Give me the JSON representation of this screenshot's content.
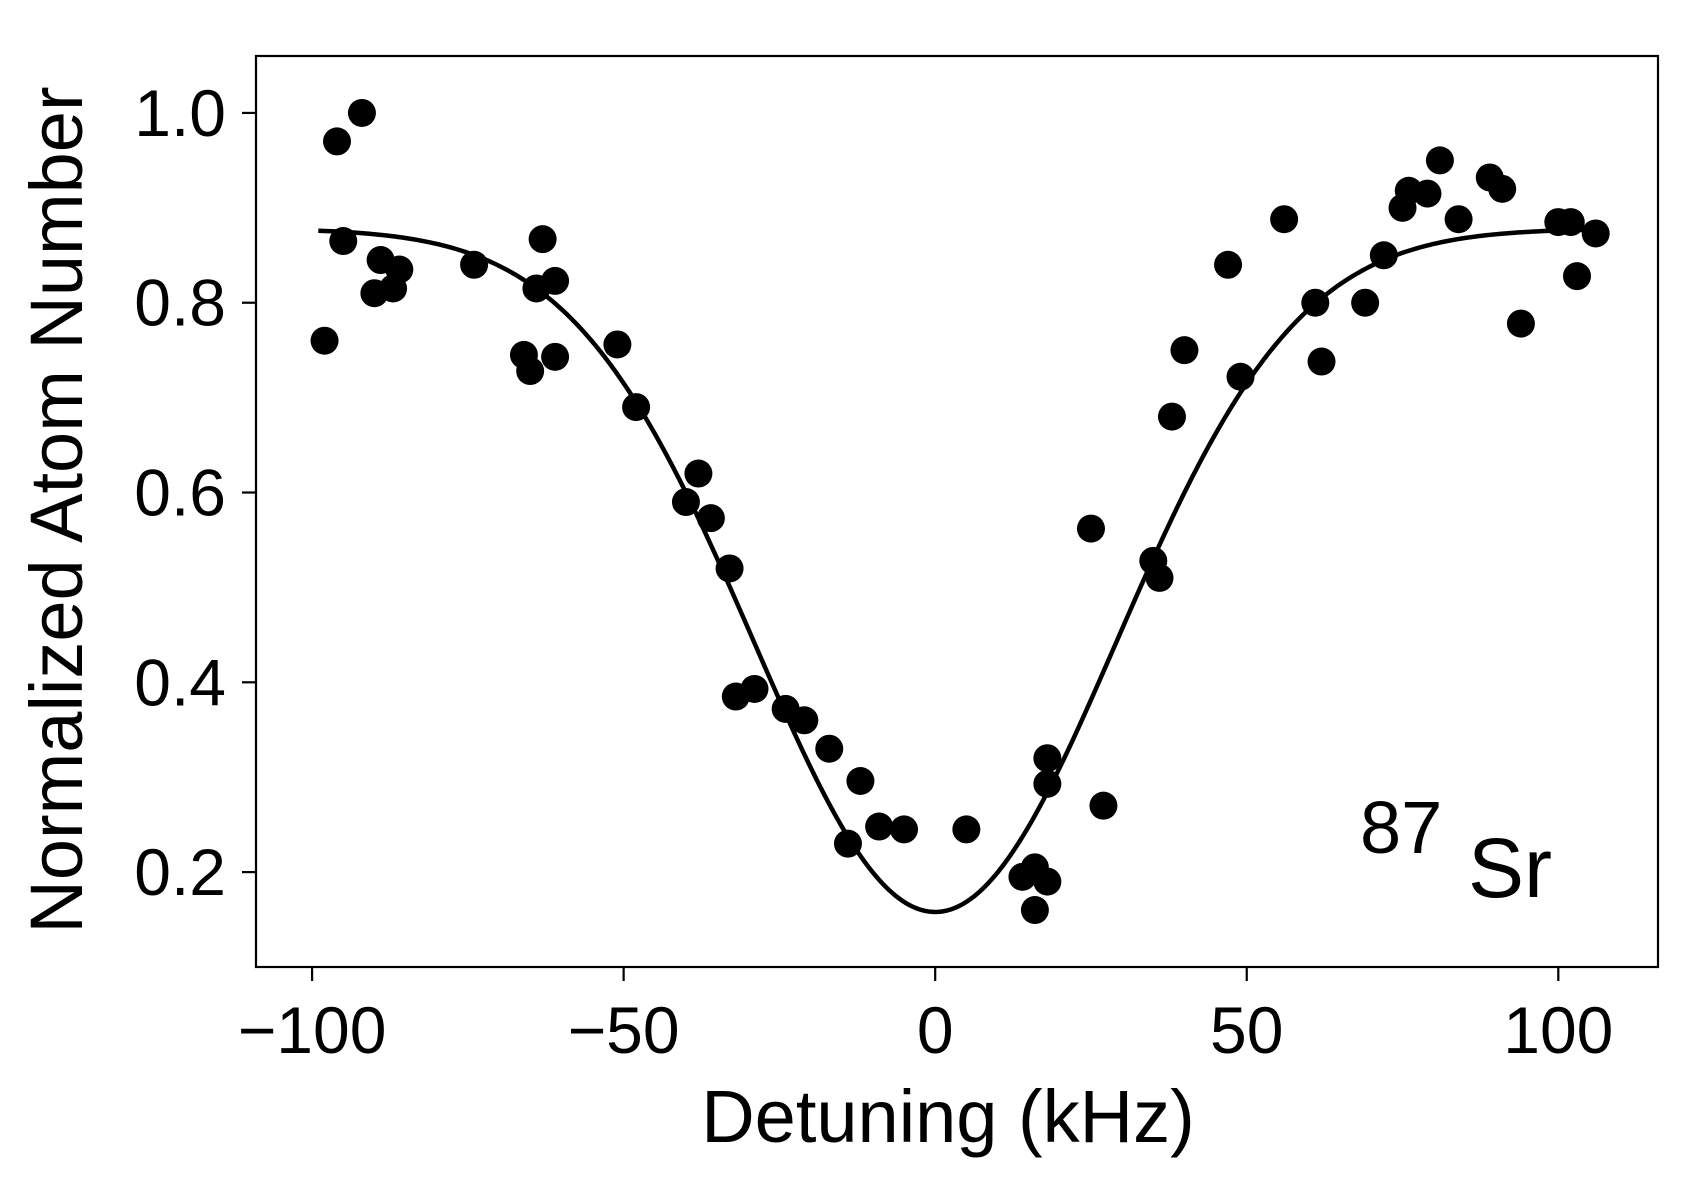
{
  "chart_data": {
    "type": "scatter",
    "title": "",
    "xlabel": "Detuning (kHz)",
    "ylabel": "Normalized Atom Number",
    "xlim": [
      -109,
      116
    ],
    "ylim": [
      0.1,
      1.06
    ],
    "xticks": [
      -100,
      -50,
      0,
      50,
      100
    ],
    "xtick_labels": [
      "−100",
      "−50",
      "0",
      "50",
      "100"
    ],
    "yticks": [
      0.2,
      0.4,
      0.6,
      0.8,
      1.0
    ],
    "ytick_labels": [
      "0.2",
      "0.4",
      "0.6",
      "0.8",
      "1.0"
    ],
    "grid": false,
    "annotation": {
      "superscript": "87",
      "text": "Sr",
      "position": "bottom-right"
    },
    "series": [
      {
        "name": "data",
        "style": "markers",
        "color": "#000000",
        "points": [
          [
            -98,
            0.76
          ],
          [
            -96,
            0.97
          ],
          [
            -95,
            0.865
          ],
          [
            -92,
            1.0
          ],
          [
            -90,
            0.81
          ],
          [
            -89,
            0.845
          ],
          [
            -87,
            0.815
          ],
          [
            -86,
            0.835
          ],
          [
            -74,
            0.84
          ],
          [
            -66,
            0.745
          ],
          [
            -65,
            0.728
          ],
          [
            -64,
            0.815
          ],
          [
            -63,
            0.867
          ],
          [
            -61,
            0.823
          ],
          [
            -61,
            0.743
          ],
          [
            -51,
            0.756
          ],
          [
            -48,
            0.69
          ],
          [
            -40,
            0.59
          ],
          [
            -38,
            0.62
          ],
          [
            -36,
            0.573
          ],
          [
            -33,
            0.52
          ],
          [
            -32,
            0.385
          ],
          [
            -29,
            0.393
          ],
          [
            -24,
            0.372
          ],
          [
            -21,
            0.36
          ],
          [
            -17,
            0.33
          ],
          [
            -14,
            0.23
          ],
          [
            -12,
            0.296
          ],
          [
            -9,
            0.248
          ],
          [
            -5,
            0.245
          ],
          [
            5,
            0.245
          ],
          [
            14,
            0.195
          ],
          [
            16,
            0.205
          ],
          [
            16,
            0.16
          ],
          [
            18,
            0.19
          ],
          [
            18,
            0.32
          ],
          [
            18,
            0.293
          ],
          [
            25,
            0.562
          ],
          [
            27,
            0.27
          ],
          [
            35,
            0.528
          ],
          [
            36,
            0.51
          ],
          [
            38,
            0.68
          ],
          [
            40,
            0.75
          ],
          [
            47,
            0.84
          ],
          [
            49,
            0.722
          ],
          [
            56,
            0.888
          ],
          [
            61,
            0.8
          ],
          [
            62,
            0.738
          ],
          [
            69,
            0.8
          ],
          [
            72,
            0.85
          ],
          [
            75,
            0.9
          ],
          [
            76,
            0.918
          ],
          [
            79,
            0.915
          ],
          [
            81,
            0.95
          ],
          [
            84,
            0.888
          ],
          [
            89,
            0.932
          ],
          [
            91,
            0.92
          ],
          [
            94,
            0.778
          ],
          [
            100,
            0.885
          ],
          [
            102,
            0.885
          ],
          [
            103,
            0.828
          ],
          [
            106,
            0.873
          ]
        ]
      },
      {
        "name": "fit",
        "style": "line",
        "color": "#000000",
        "model": "gaussian",
        "baseline": 0.878,
        "depth": 0.72,
        "center": 0,
        "sigma": 29,
        "x_range": [
          -99,
          106
        ]
      }
    ]
  }
}
